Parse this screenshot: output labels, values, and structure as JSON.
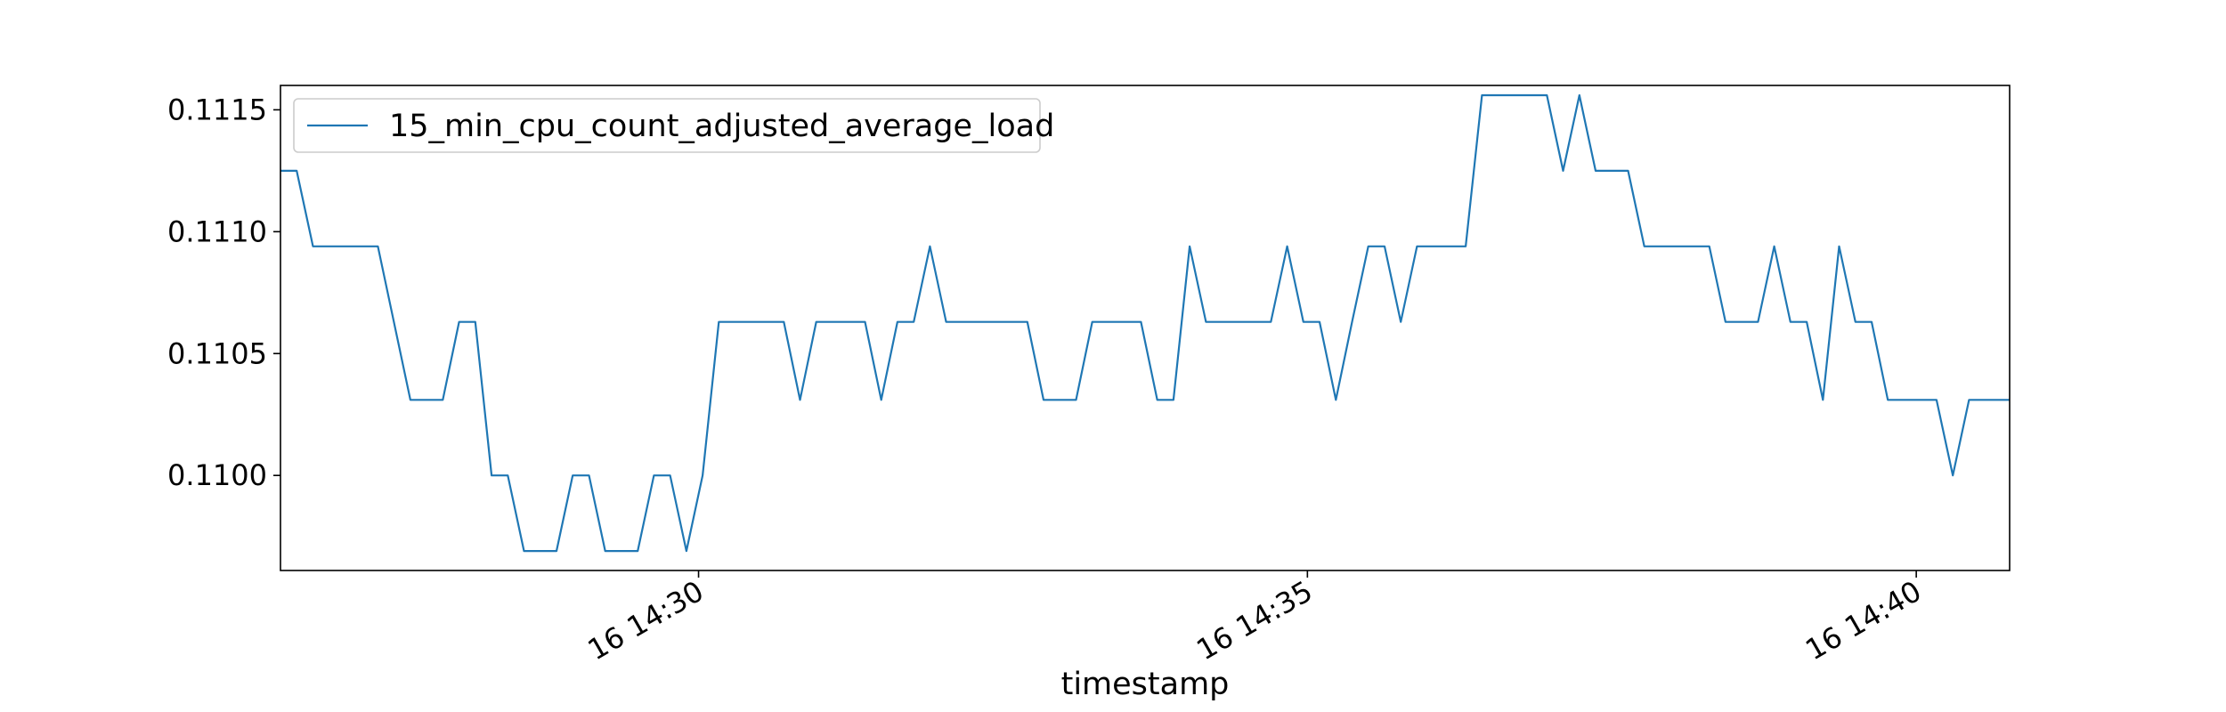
{
  "chart_data": {
    "type": "line",
    "title": "",
    "xlabel": "timestamp",
    "ylabel": "",
    "ylim": [
      0.10961,
      0.1116
    ],
    "xlim": [
      "2024-01-16 14:26:34",
      "2024-01-16 14:40:46"
    ],
    "grid": false,
    "legend_position": "top-left",
    "x_ticks": [
      {
        "value": "2024-01-16 14:30:00",
        "label": "16 14:30"
      },
      {
        "value": "2024-01-16 14:35:00",
        "label": "16 14:35"
      },
      {
        "value": "2024-01-16 14:40:00",
        "label": "16 14:40"
      }
    ],
    "y_ticks": [
      {
        "value": 0.11,
        "label": "0.1100"
      },
      {
        "value": 0.1105,
        "label": "0.1105"
      },
      {
        "value": 0.111,
        "label": "0.1110"
      },
      {
        "value": 0.1115,
        "label": "0.1115"
      }
    ],
    "series": [
      {
        "name": "15_min_cpu_count_adjusted_average_load",
        "color": "#1f77b4",
        "points": [
          [
            "2024-01-16 14:26:34",
            0.11125
          ],
          [
            "2024-01-16 14:26:42",
            0.11125
          ],
          [
            "2024-01-16 14:26:50",
            0.11094
          ],
          [
            "2024-01-16 14:27:22",
            0.11094
          ],
          [
            "2024-01-16 14:27:38",
            0.11031
          ],
          [
            "2024-01-16 14:27:54",
            0.11031
          ],
          [
            "2024-01-16 14:28:02",
            0.11063
          ],
          [
            "2024-01-16 14:28:10",
            0.11063
          ],
          [
            "2024-01-16 14:28:18",
            0.11
          ],
          [
            "2024-01-16 14:28:26",
            0.11
          ],
          [
            "2024-01-16 14:28:34",
            0.10969
          ],
          [
            "2024-01-16 14:28:50",
            0.10969
          ],
          [
            "2024-01-16 14:28:58",
            0.11
          ],
          [
            "2024-01-16 14:29:06",
            0.11
          ],
          [
            "2024-01-16 14:29:14",
            0.10969
          ],
          [
            "2024-01-16 14:29:30",
            0.10969
          ],
          [
            "2024-01-16 14:29:38",
            0.11
          ],
          [
            "2024-01-16 14:29:46",
            0.11
          ],
          [
            "2024-01-16 14:29:54",
            0.10969
          ],
          [
            "2024-01-16 14:30:02",
            0.11
          ],
          [
            "2024-01-16 14:30:10",
            0.11063
          ],
          [
            "2024-01-16 14:30:42",
            0.11063
          ],
          [
            "2024-01-16 14:30:50",
            0.11031
          ],
          [
            "2024-01-16 14:30:58",
            0.11063
          ],
          [
            "2024-01-16 14:31:22",
            0.11063
          ],
          [
            "2024-01-16 14:31:30",
            0.11031
          ],
          [
            "2024-01-16 14:31:38",
            0.11063
          ],
          [
            "2024-01-16 14:31:46",
            0.11063
          ],
          [
            "2024-01-16 14:31:54",
            0.11094
          ],
          [
            "2024-01-16 14:32:02",
            0.11063
          ],
          [
            "2024-01-16 14:32:42",
            0.11063
          ],
          [
            "2024-01-16 14:32:50",
            0.11031
          ],
          [
            "2024-01-16 14:33:06",
            0.11031
          ],
          [
            "2024-01-16 14:33:14",
            0.11063
          ],
          [
            "2024-01-16 14:33:38",
            0.11063
          ],
          [
            "2024-01-16 14:33:46",
            0.11031
          ],
          [
            "2024-01-16 14:33:54",
            0.11031
          ],
          [
            "2024-01-16 14:34:02",
            0.11094
          ],
          [
            "2024-01-16 14:34:10",
            0.11063
          ],
          [
            "2024-01-16 14:34:42",
            0.11063
          ],
          [
            "2024-01-16 14:34:50",
            0.11094
          ],
          [
            "2024-01-16 14:34:58",
            0.11063
          ],
          [
            "2024-01-16 14:35:06",
            0.11063
          ],
          [
            "2024-01-16 14:35:14",
            0.11031
          ],
          [
            "2024-01-16 14:35:22",
            0.11063
          ],
          [
            "2024-01-16 14:35:30",
            0.11094
          ],
          [
            "2024-01-16 14:35:38",
            0.11094
          ],
          [
            "2024-01-16 14:35:46",
            0.11063
          ],
          [
            "2024-01-16 14:35:54",
            0.11094
          ],
          [
            "2024-01-16 14:36:18",
            0.11094
          ],
          [
            "2024-01-16 14:36:26",
            0.11156
          ],
          [
            "2024-01-16 14:36:58",
            0.11156
          ],
          [
            "2024-01-16 14:37:06",
            0.11125
          ],
          [
            "2024-01-16 14:37:14",
            0.11156
          ],
          [
            "2024-01-16 14:37:22",
            0.11125
          ],
          [
            "2024-01-16 14:37:38",
            0.11125
          ],
          [
            "2024-01-16 14:37:46",
            0.11094
          ],
          [
            "2024-01-16 14:38:18",
            0.11094
          ],
          [
            "2024-01-16 14:38:26",
            0.11063
          ],
          [
            "2024-01-16 14:38:42",
            0.11063
          ],
          [
            "2024-01-16 14:38:50",
            0.11094
          ],
          [
            "2024-01-16 14:38:58",
            0.11063
          ],
          [
            "2024-01-16 14:39:06",
            0.11063
          ],
          [
            "2024-01-16 14:39:14",
            0.11031
          ],
          [
            "2024-01-16 14:39:22",
            0.11094
          ],
          [
            "2024-01-16 14:39:30",
            0.11063
          ],
          [
            "2024-01-16 14:39:38",
            0.11063
          ],
          [
            "2024-01-16 14:39:46",
            0.11031
          ],
          [
            "2024-01-16 14:40:10",
            0.11031
          ],
          [
            "2024-01-16 14:40:18",
            0.11
          ],
          [
            "2024-01-16 14:40:26",
            0.11031
          ],
          [
            "2024-01-16 14:40:46",
            0.11031
          ]
        ]
      }
    ]
  }
}
